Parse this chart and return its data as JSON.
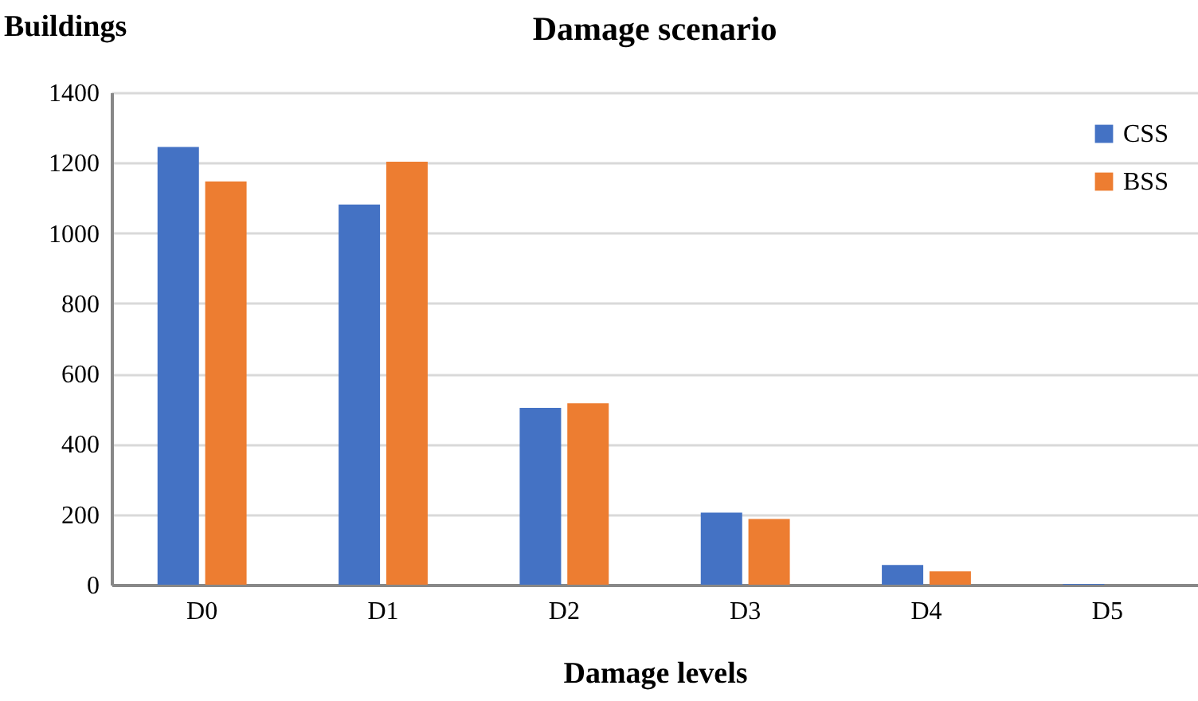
{
  "chart_data": {
    "type": "bar",
    "title": "Damage scenario",
    "xlabel": "Damage levels",
    "ylabel": "Buildings",
    "categories": [
      "D0",
      "D1",
      "D2",
      "D3",
      "D4",
      "D5"
    ],
    "series": [
      {
        "name": "CSS",
        "color": "#4472c4",
        "values": [
          1245,
          1081,
          503,
          205,
          56,
          2
        ]
      },
      {
        "name": "BSS",
        "color": "#ed7d31",
        "values": [
          1147,
          1203,
          516,
          187,
          38,
          0
        ]
      }
    ],
    "ylim": [
      0,
      1400
    ],
    "yticks": [
      0,
      200,
      400,
      600,
      800,
      1000,
      1200,
      1400
    ],
    "grid": "y",
    "legend": "top right"
  }
}
